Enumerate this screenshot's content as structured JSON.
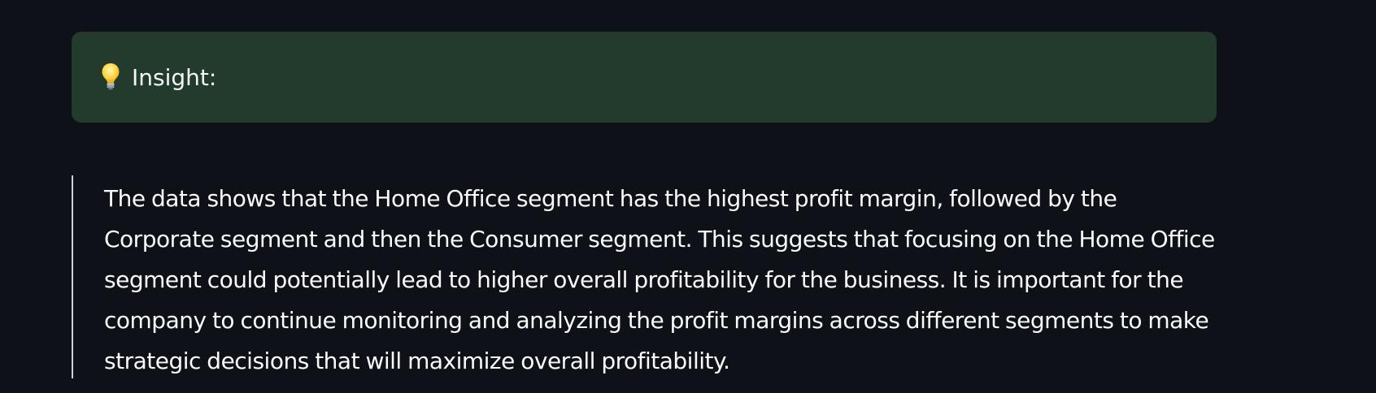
{
  "alert": {
    "icon": "lightbulb-icon",
    "label": "Insight:",
    "background": "#223b2d"
  },
  "insight": {
    "text": "The data shows that the Home Office segment has the highest profit margin, followed by the Corporate segment and then the Consumer segment. This suggests that focusing on the Home Office segment could potentially lead to higher overall profitability for the business. It is important for the company to continue monitoring and analyzing the profit margins across different segments to make strategic decisions that will maximize overall profitability."
  },
  "colors": {
    "page_background": "#0e1117",
    "text": "#fafafa",
    "quote_border": "#cfd3d9"
  }
}
